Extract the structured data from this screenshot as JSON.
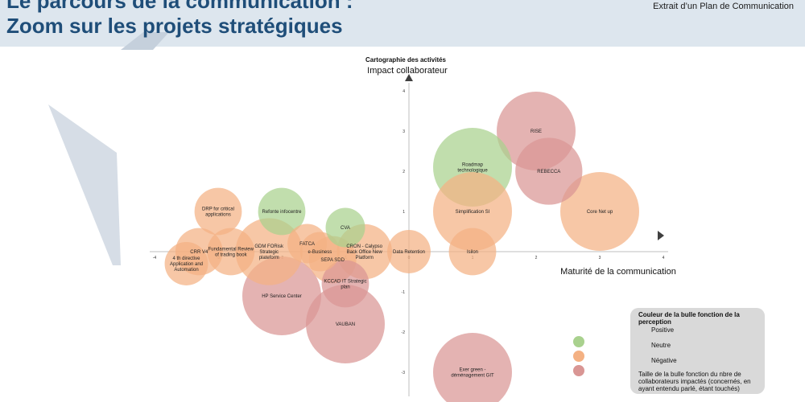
{
  "header": {
    "title_line1": "Le parcours de la communication :",
    "title_line2": "Zoom sur les projets stratégiques",
    "extract_label": "Extrait d’un Plan de Communication"
  },
  "chart_data": {
    "type": "bubble",
    "title": "Cartographie des activités",
    "ylabel": "Impact collaborateur",
    "xlabel": "Maturité de la communication",
    "xlim": [
      -4,
      4
    ],
    "ylim": [
      -3,
      4
    ],
    "x_ticks": [
      -4,
      -3,
      -2,
      -1,
      0,
      1,
      2,
      3,
      4
    ],
    "y_ticks": [
      -3,
      -2,
      -1,
      0,
      1,
      2,
      3,
      4
    ],
    "grid": false,
    "colors": {
      "Positive": "#a9d18e",
      "Neutre": "#f4b183",
      "Négative": "#d99694"
    },
    "size_unit": "relative",
    "points": [
      {
        "label": "RISE",
        "x": 2.0,
        "y": 3.0,
        "size": 1.0,
        "color": "Négative"
      },
      {
        "label": "REBECCA",
        "x": 2.2,
        "y": 2.0,
        "size": 0.85,
        "color": "Négative"
      },
      {
        "label": "Roadmap technologique",
        "x": 1.0,
        "y": 2.1,
        "size": 1.0,
        "color": "Positive"
      },
      {
        "label": "Simplification SI",
        "x": 1.0,
        "y": 1.0,
        "size": 1.0,
        "color": "Neutre"
      },
      {
        "label": "Core Net up",
        "x": 3.0,
        "y": 1.0,
        "size": 1.0,
        "color": "Neutre"
      },
      {
        "label": "Isilon",
        "x": 1.0,
        "y": 0.0,
        "size": 0.6,
        "color": "Neutre"
      },
      {
        "label": "Data Retention",
        "x": 0.0,
        "y": 0.0,
        "size": 0.55,
        "color": "Neutre"
      },
      {
        "label": "Exer green - déménagement GIT",
        "x": 1.0,
        "y": -3.0,
        "size": 1.0,
        "color": "Négative"
      },
      {
        "label": "DRP for critical applications",
        "x": -3.0,
        "y": 1.0,
        "size": 0.6,
        "color": "Neutre"
      },
      {
        "label": "Refonte infocentre",
        "x": -2.0,
        "y": 1.0,
        "size": 0.6,
        "color": "Positive"
      },
      {
        "label": "CRR V4",
        "x": -3.3,
        "y": 0.0,
        "size": 0.6,
        "color": "Neutre"
      },
      {
        "label": "Fundamental Review of trading book",
        "x": -2.8,
        "y": 0.0,
        "size": 0.6,
        "color": "Neutre"
      },
      {
        "label": "GDM FORisk Strategic plateform",
        "x": -2.2,
        "y": 0.0,
        "size": 0.85,
        "color": "Neutre"
      },
      {
        "label": "FATCA",
        "x": -1.6,
        "y": 0.2,
        "size": 0.5,
        "color": "Neutre"
      },
      {
        "label": "e-Business",
        "x": -1.4,
        "y": 0.0,
        "size": 0.5,
        "color": "Neutre"
      },
      {
        "label": "CVA",
        "x": -1.0,
        "y": 0.6,
        "size": 0.5,
        "color": "Positive"
      },
      {
        "label": "SEPA SDD",
        "x": -1.2,
        "y": -0.2,
        "size": 0.6,
        "color": "Neutre"
      },
      {
        "label": "CRON - Calypso Back Office New Platform",
        "x": -0.7,
        "y": 0.0,
        "size": 0.7,
        "color": "Neutre"
      },
      {
        "label": "4 th directive Application and Automation",
        "x": -3.5,
        "y": -0.3,
        "size": 0.55,
        "color": "Neutre"
      },
      {
        "label": "HP Service Center",
        "x": -2.0,
        "y": -1.1,
        "size": 1.0,
        "color": "Négative"
      },
      {
        "label": "KCCAD IT Strategic plan",
        "x": -1.0,
        "y": -0.8,
        "size": 0.6,
        "color": "Négative"
      },
      {
        "label": "VAUBAN",
        "x": -1.0,
        "y": -1.8,
        "size": 1.0,
        "color": "Négative"
      }
    ]
  },
  "legend": {
    "title": "Couleur de la bulle fonction de la perception",
    "positive": "Positive",
    "neutre": "Neutre",
    "negative": "Négative",
    "size_note": "Taille de la bulle fonction du nbre de collaborateurs impactés (concernés, en ayant entendu parlé, étant touchés)"
  }
}
